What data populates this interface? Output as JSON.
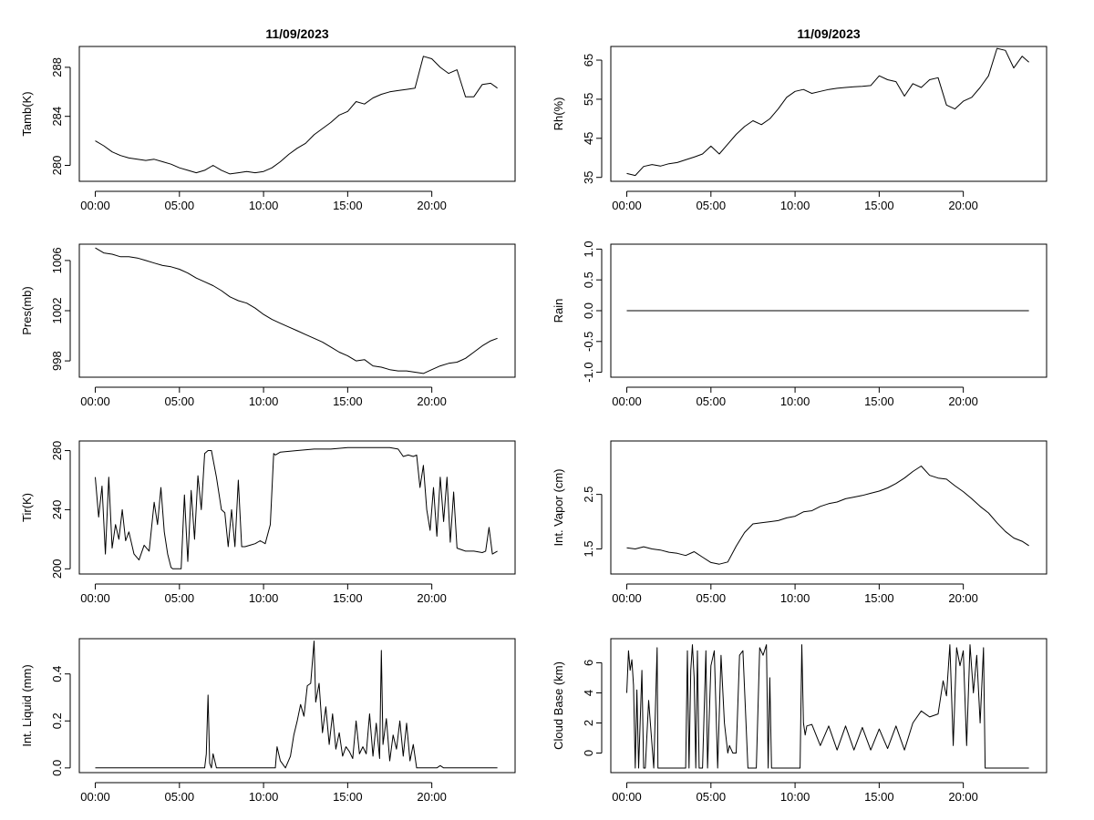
{
  "chart_data": [
    {
      "type": "line",
      "title": "11/09/2023",
      "ylabel": "Tamb(K)",
      "yticks": [
        "280",
        "284",
        "288"
      ],
      "ylim": [
        278.7,
        289.7
      ],
      "xticks": [
        "00:00",
        "05:00",
        "10:00",
        "15:00",
        "20:00"
      ],
      "xlim": [
        -0.95,
        24.95
      ],
      "series": [
        {
          "x": [
            0,
            0.5,
            1,
            1.5,
            2,
            2.5,
            3,
            3.5,
            4,
            4.5,
            5,
            5.5,
            6,
            6.5,
            7,
            7.5,
            8,
            8.5,
            9,
            9.5,
            10,
            10.5,
            11,
            11.5,
            12,
            12.5,
            13,
            13.5,
            14,
            14.5,
            15,
            15.5,
            16,
            16.5,
            17,
            17.5,
            18,
            18.5,
            19,
            19.5,
            20,
            20.5,
            21,
            21.5,
            22,
            22.5,
            23,
            23.5,
            23.9
          ],
          "values": [
            282.0,
            281.6,
            281.1,
            280.8,
            280.6,
            280.5,
            280.4,
            280.5,
            280.3,
            280.1,
            279.8,
            279.6,
            279.4,
            279.6,
            280.0,
            279.6,
            279.3,
            279.4,
            279.5,
            279.4,
            279.5,
            279.8,
            280.3,
            280.9,
            281.4,
            281.8,
            282.5,
            283.0,
            283.5,
            284.1,
            284.4,
            285.2,
            285.0,
            285.5,
            285.8,
            286.0,
            286.1,
            286.2,
            286.3,
            288.9,
            288.7,
            288.0,
            287.5,
            287.8,
            285.6,
            285.6,
            286.6,
            286.7,
            286.3
          ]
        }
      ]
    },
    {
      "type": "line",
      "title": "11/09/2023",
      "ylabel": "Rh(%)",
      "yticks": [
        "35",
        "45",
        "55",
        "65"
      ],
      "ylim": [
        34,
        68.5
      ],
      "xticks": [
        "00:00",
        "05:00",
        "10:00",
        "15:00",
        "20:00"
      ],
      "xlim": [
        -0.95,
        24.95
      ],
      "series": [
        {
          "x": [
            0,
            0.5,
            1,
            1.5,
            2,
            2.5,
            3,
            3.5,
            4,
            4.5,
            5,
            5.5,
            6,
            6.5,
            7,
            7.5,
            8,
            8.5,
            9,
            9.5,
            10,
            10.5,
            11,
            11.5,
            12,
            12.5,
            13,
            13.5,
            14,
            14.5,
            15,
            15.5,
            16,
            16.5,
            17,
            17.5,
            18,
            18.5,
            19,
            19.5,
            20,
            20.5,
            21,
            21.5,
            22,
            22.5,
            23,
            23.5,
            23.9
          ],
          "values": [
            36.0,
            35.5,
            37.8,
            38.3,
            37.9,
            38.5,
            38.8,
            39.5,
            40.2,
            41.0,
            43.0,
            41.0,
            43.5,
            46.0,
            48.0,
            49.5,
            48.5,
            50.0,
            52.5,
            55.5,
            57.0,
            57.5,
            56.5,
            57.0,
            57.5,
            57.8,
            58.0,
            58.2,
            58.3,
            58.5,
            61.0,
            60.0,
            59.5,
            55.8,
            59.0,
            58.0,
            60.0,
            60.5,
            53.5,
            52.5,
            54.5,
            55.5,
            58.0,
            61.0,
            68.0,
            67.5,
            63.0,
            66.0,
            64.5
          ]
        }
      ]
    },
    {
      "type": "line",
      "ylabel": "Pres(mb)",
      "yticks": [
        "998",
        "1002",
        "1006"
      ],
      "ylim": [
        996.7,
        1007.3
      ],
      "xticks": [
        "00:00",
        "05:00",
        "10:00",
        "15:00",
        "20:00"
      ],
      "xlim": [
        -0.95,
        24.95
      ],
      "series": [
        {
          "x": [
            0,
            0.5,
            1,
            1.5,
            2,
            2.5,
            3,
            3.5,
            4,
            4.5,
            5,
            5.5,
            6,
            6.5,
            7,
            7.5,
            8,
            8.5,
            9,
            9.5,
            10,
            10.5,
            11,
            11.5,
            12,
            12.5,
            13,
            13.5,
            14,
            14.5,
            15,
            15.5,
            16,
            16.5,
            17,
            17.5,
            18,
            18.5,
            19,
            19.5,
            20,
            20.5,
            21,
            21.5,
            22,
            22.5,
            23,
            23.5,
            23.9
          ],
          "values": [
            1007.0,
            1006.6,
            1006.5,
            1006.3,
            1006.3,
            1006.2,
            1006.0,
            1005.8,
            1005.6,
            1005.5,
            1005.3,
            1005.0,
            1004.6,
            1004.3,
            1004.0,
            1003.6,
            1003.1,
            1002.8,
            1002.6,
            1002.2,
            1001.7,
            1001.3,
            1001.0,
            1000.7,
            1000.4,
            1000.1,
            999.8,
            999.5,
            999.1,
            998.7,
            998.4,
            998.0,
            998.1,
            997.6,
            997.5,
            997.3,
            997.2,
            997.2,
            997.1,
            997.0,
            997.3,
            997.6,
            997.8,
            997.9,
            998.2,
            998.7,
            999.2,
            999.6,
            999.8
          ]
        }
      ]
    },
    {
      "type": "line",
      "ylabel": "Rain",
      "yticks": [
        "-1.0",
        "-0.5",
        "0.0",
        "0.5",
        "1.0"
      ],
      "ylim": [
        -1.08,
        1.08
      ],
      "xticks": [
        "00:00",
        "05:00",
        "10:00",
        "15:00",
        "20:00"
      ],
      "xlim": [
        -0.95,
        24.95
      ],
      "series": [
        {
          "x": [
            0,
            23.9
          ],
          "values": [
            0,
            0
          ]
        }
      ]
    },
    {
      "type": "line",
      "ylabel": "Tir(K)",
      "yticks": [
        "200",
        "240",
        "280"
      ],
      "ylim": [
        196.5,
        286.5
      ],
      "xticks": [
        "00:00",
        "05:00",
        "10:00",
        "15:00",
        "20:00"
      ],
      "xlim": [
        -0.95,
        24.95
      ],
      "series": [
        {
          "x": [
            0,
            0.2,
            0.4,
            0.6,
            0.8,
            1.0,
            1.2,
            1.4,
            1.6,
            1.8,
            2.0,
            2.3,
            2.6,
            2.9,
            3.2,
            3.5,
            3.7,
            3.9,
            4.1,
            4.3,
            4.5,
            4.6,
            4.8,
            5.1,
            5.3,
            5.5,
            5.7,
            5.9,
            6.1,
            6.3,
            6.5,
            6.7,
            6.9,
            7.2,
            7.5,
            7.7,
            7.9,
            8.1,
            8.3,
            8.5,
            8.7,
            8.9,
            9.2,
            9.5,
            9.8,
            10.1,
            10.4,
            10.6,
            10.7,
            11.0,
            12.0,
            13.0,
            14.0,
            15.0,
            16.0,
            17.0,
            17.5,
            18.0,
            18.3,
            18.6,
            18.9,
            19.1,
            19.3,
            19.5,
            19.7,
            19.9,
            20.1,
            20.3,
            20.5,
            20.7,
            20.9,
            21.1,
            21.3,
            21.5,
            22.0,
            22.5,
            23.0,
            23.2,
            23.4,
            23.6,
            23.9
          ],
          "values": [
            262,
            235,
            256,
            210,
            262,
            214,
            230,
            220,
            240,
            219,
            225,
            210,
            206,
            216,
            212,
            245,
            230,
            255,
            225,
            210,
            201,
            200,
            200,
            200,
            250,
            205,
            253,
            220,
            263,
            240,
            278,
            280,
            280,
            262,
            240,
            238,
            215,
            240,
            215,
            260,
            215,
            215,
            216,
            217,
            219,
            217,
            230,
            278,
            277,
            279,
            280,
            281,
            281,
            282,
            282,
            282,
            282,
            281,
            276,
            277,
            276,
            277,
            255,
            270,
            240,
            226,
            255,
            222,
            262,
            232,
            262,
            218,
            252,
            214,
            212,
            212,
            211,
            212,
            228,
            210,
            212
          ]
        }
      ]
    },
    {
      "type": "line",
      "ylabel": "Int. Vapor (cm)",
      "yticks": [
        "1.5",
        "2.5"
      ],
      "ylim": [
        1.04,
        3.48
      ],
      "xticks": [
        "00:00",
        "05:00",
        "10:00",
        "15:00",
        "20:00"
      ],
      "xlim": [
        -0.95,
        24.95
      ],
      "series": [
        {
          "x": [
            0,
            0.5,
            1,
            1.5,
            2,
            2.5,
            3,
            3.5,
            4,
            4.5,
            5,
            5.5,
            6,
            6.5,
            7,
            7.5,
            8,
            8.5,
            9,
            9.5,
            10,
            10.5,
            11,
            11.5,
            12,
            12.5,
            13,
            13.5,
            14,
            14.5,
            15,
            15.5,
            16,
            16.5,
            17,
            17.5,
            18,
            18.5,
            19,
            19.5,
            20,
            20.5,
            21,
            21.5,
            22,
            22.5,
            23,
            23.5,
            23.9
          ],
          "values": [
            1.52,
            1.5,
            1.54,
            1.5,
            1.48,
            1.44,
            1.42,
            1.38,
            1.45,
            1.35,
            1.25,
            1.22,
            1.26,
            1.55,
            1.8,
            1.96,
            1.98,
            2.0,
            2.02,
            2.07,
            2.1,
            2.18,
            2.2,
            2.28,
            2.33,
            2.36,
            2.42,
            2.45,
            2.48,
            2.52,
            2.56,
            2.62,
            2.7,
            2.8,
            2.92,
            3.02,
            2.85,
            2.8,
            2.78,
            2.66,
            2.55,
            2.42,
            2.28,
            2.16,
            1.98,
            1.82,
            1.7,
            1.64,
            1.56
          ]
        }
      ]
    },
    {
      "type": "line",
      "ylabel": "Int. Liquid (mm)",
      "yticks": [
        "0.0",
        "0.2",
        "0.4"
      ],
      "ylim": [
        -0.02,
        0.55
      ],
      "xticks": [
        "00:00",
        "05:00",
        "10:00",
        "15:00",
        "20:00"
      ],
      "xlim": [
        -0.95,
        24.95
      ],
      "series": [
        {
          "x": [
            0,
            6.5,
            6.6,
            6.7,
            6.8,
            6.9,
            7.0,
            7.1,
            7.2,
            10.7,
            10.8,
            11.0,
            11.3,
            11.6,
            11.8,
            12.0,
            12.2,
            12.4,
            12.6,
            12.8,
            13.0,
            13.1,
            13.3,
            13.5,
            13.7,
            13.9,
            14.1,
            14.3,
            14.5,
            14.7,
            14.9,
            15.1,
            15.3,
            15.5,
            15.7,
            15.9,
            16.1,
            16.3,
            16.5,
            16.7,
            16.9,
            17.0,
            17.1,
            17.3,
            17.5,
            17.7,
            17.9,
            18.1,
            18.3,
            18.5,
            18.7,
            18.9,
            19.1,
            20.3,
            20.5,
            20.7,
            23.9
          ],
          "values": [
            0,
            0,
            0.06,
            0.31,
            0.02,
            0,
            0.06,
            0.03,
            0,
            0,
            0.09,
            0.03,
            0,
            0.05,
            0.14,
            0.2,
            0.27,
            0.22,
            0.35,
            0.36,
            0.54,
            0.28,
            0.36,
            0.15,
            0.26,
            0.1,
            0.23,
            0.08,
            0.15,
            0.05,
            0.09,
            0.07,
            0.04,
            0.2,
            0.06,
            0.09,
            0.06,
            0.23,
            0.05,
            0.19,
            0.04,
            0.5,
            0.1,
            0.21,
            0.03,
            0.14,
            0.08,
            0.2,
            0.05,
            0.19,
            0.03,
            0.1,
            0,
            0,
            0.01,
            0,
            0
          ]
        }
      ]
    },
    {
      "type": "line",
      "ylabel": "Cloud Base (km)",
      "yticks": [
        "0",
        "2",
        "4",
        "6"
      ],
      "ylim": [
        -1.3,
        7.6
      ],
      "xticks": [
        "00:00",
        "05:00",
        "10:00",
        "15:00",
        "20:00"
      ],
      "xlim": [
        -0.95,
        24.95
      ],
      "series": [
        {
          "x": [
            0,
            0.1,
            0.2,
            0.3,
            0.4,
            0.5,
            0.6,
            0.7,
            0.9,
            1.0,
            1.1,
            1.3,
            1.6,
            1.8,
            1.85,
            1.9,
            3.5,
            3.6,
            3.7,
            3.8,
            3.9,
            4.0,
            4.1,
            4.2,
            4.3,
            4.5,
            4.7,
            4.8,
            5.0,
            5.2,
            5.4,
            5.6,
            5.8,
            6.0,
            6.1,
            6.3,
            6.5,
            6.7,
            6.9,
            7.2,
            7.5,
            7.7,
            7.9,
            8.1,
            8.3,
            8.4,
            8.5,
            8.6,
            8.8,
            9.0,
            10.3,
            10.4,
            10.5,
            10.6,
            10.7,
            11.0,
            11.5,
            12.0,
            12.5,
            13.0,
            13.5,
            14.0,
            14.5,
            15.0,
            15.5,
            16.0,
            16.5,
            17.0,
            17.5,
            18.0,
            18.5,
            18.8,
            19.0,
            19.2,
            19.4,
            19.6,
            19.8,
            20.0,
            20.2,
            20.4,
            20.6,
            20.8,
            21.0,
            21.2,
            21.3,
            23.9
          ],
          "values": [
            4.0,
            6.8,
            5.5,
            6.2,
            4.5,
            -1,
            4.2,
            -1,
            5.5,
            -1,
            -1,
            3.5,
            -1,
            7.0,
            -1,
            -1,
            -1,
            6.8,
            -1,
            5.5,
            7.2,
            5.0,
            -1,
            6.8,
            -1,
            -1,
            6.8,
            -1,
            5.8,
            6.8,
            -1,
            6.5,
            2.0,
            0,
            0.5,
            0,
            0,
            6.5,
            6.8,
            -1,
            -1,
            -1,
            7.0,
            6.5,
            7.2,
            -1,
            5.0,
            -1,
            -1,
            -1,
            -1,
            7.2,
            2.0,
            1.2,
            1.8,
            1.9,
            0.5,
            1.8,
            0.2,
            1.8,
            0.2,
            1.7,
            0.2,
            1.6,
            0.3,
            1.8,
            0.2,
            2.0,
            2.8,
            2.4,
            2.6,
            4.8,
            3.8,
            7.2,
            0.5,
            7.0,
            5.8,
            6.8,
            0.5,
            7.2,
            4.0,
            6.5,
            2.0,
            7.0,
            -1,
            -1
          ]
        }
      ]
    }
  ]
}
